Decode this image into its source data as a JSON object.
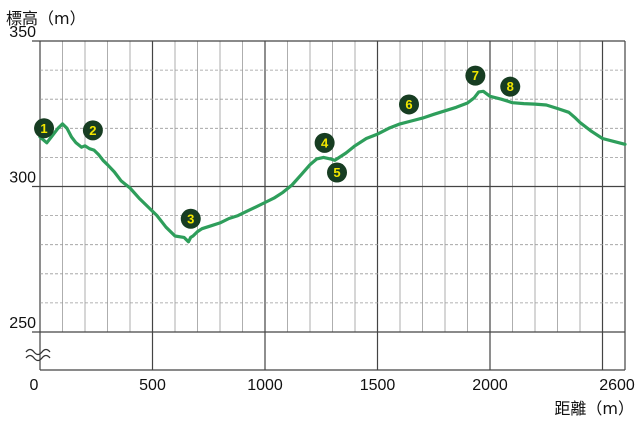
{
  "chart_data": {
    "type": "line",
    "ylabel": "標高（m）",
    "xlabel": "距離（m）",
    "xlim": [
      0,
      2600
    ],
    "ylim": [
      250,
      350
    ],
    "x_ticks": [
      "0",
      "500",
      "1000",
      "1500",
      "2000",
      "2600"
    ],
    "y_ticks": [
      "350",
      "300",
      "250"
    ],
    "grid": true,
    "y_axis_break": true,
    "colors": {
      "line": "#2e9e5b",
      "marker_fill": "#173d22",
      "marker_text": "#f2e600",
      "major_grid": "#444444",
      "minor_grid": "#9a9a9a"
    },
    "series": [
      {
        "x": [
          0,
          30,
          50,
          80,
          100,
          120,
          140,
          160,
          185,
          200,
          220,
          240,
          260,
          280,
          300,
          330,
          360,
          400,
          440,
          480,
          520,
          560,
          600,
          640,
          660,
          670,
          680,
          700,
          720,
          760,
          800,
          840,
          880,
          920,
          960,
          1000,
          1040,
          1080,
          1120,
          1160,
          1200,
          1230,
          1260,
          1290,
          1310,
          1330,
          1360,
          1400,
          1450,
          1500,
          1550,
          1600,
          1650,
          1700,
          1750,
          1800,
          1850,
          1900,
          1930,
          1950,
          1970,
          2000,
          2050,
          2100,
          2150,
          2200,
          2250,
          2300,
          2350,
          2380,
          2400,
          2450,
          2500,
          2550,
          2600
        ],
        "y": [
          317,
          315,
          317,
          320,
          321.5,
          320,
          317,
          315,
          313.5,
          314,
          313,
          312.5,
          311,
          309,
          307.5,
          305,
          302,
          299.5,
          296,
          293,
          290,
          286,
          283,
          282.5,
          281,
          282.5,
          283,
          284.5,
          285.5,
          286.5,
          287.5,
          289,
          290,
          291.5,
          293,
          294.5,
          296,
          298,
          300.5,
          304,
          307.5,
          309.5,
          310,
          309.5,
          309,
          310,
          311.5,
          314,
          316.5,
          318,
          320,
          321.5,
          322.5,
          323.5,
          324.8,
          326,
          327.2,
          328.7,
          330.5,
          332.5,
          332.7,
          331,
          330,
          328.8,
          328.5,
          328.3,
          328,
          326.8,
          325.5,
          323.5,
          322,
          319,
          316.5,
          315.5,
          314.5
        ]
      }
    ],
    "markers": [
      {
        "label": "1",
        "x": 18,
        "y": 320
      },
      {
        "label": "2",
        "x": 235,
        "y": 319.3
      },
      {
        "label": "3",
        "x": 670,
        "y": 288.9
      },
      {
        "label": "4",
        "x": 1265,
        "y": 315
      },
      {
        "label": "5",
        "x": 1320,
        "y": 304.8
      },
      {
        "label": "6",
        "x": 1640,
        "y": 328.2
      },
      {
        "label": "7",
        "x": 1935,
        "y": 338.1
      },
      {
        "label": "8",
        "x": 2090,
        "y": 334.3
      }
    ]
  }
}
